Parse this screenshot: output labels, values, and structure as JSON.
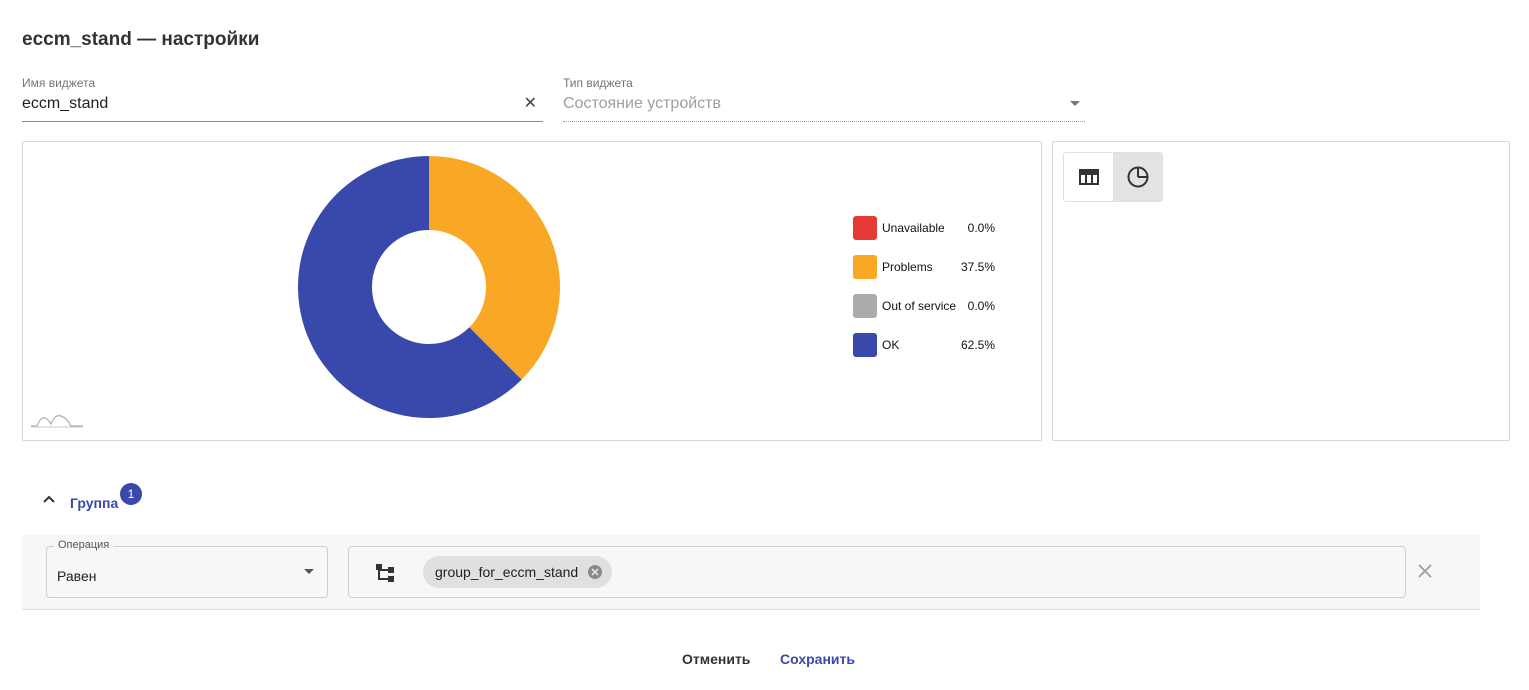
{
  "header": {
    "title": "eccm_stand — настройки"
  },
  "form": {
    "name_label": "Имя виджета",
    "name_value": "eccm_stand",
    "type_label": "Тип виджета",
    "type_value": "Состояние устройств"
  },
  "chart_data": {
    "type": "pie",
    "style": "donut",
    "categories": [
      "Unavailable",
      "Problems",
      "Out of service",
      "OK"
    ],
    "values": [
      0.0,
      37.5,
      0.0,
      62.5
    ],
    "value_labels": [
      "0.0%",
      "37.5%",
      "0.0%",
      "62.5%"
    ],
    "colors": [
      "#e53935",
      "#f9a825",
      "#ababab",
      "#3949ab"
    ],
    "legend_position": "right"
  },
  "view_toggle": {
    "options": [
      "table-icon",
      "pie-chart-icon"
    ],
    "selected": "pie-chart-icon"
  },
  "group": {
    "label": "Группа",
    "count": "1",
    "expanded": true
  },
  "filter": {
    "operation_label": "Операция",
    "operation_value": "Равен",
    "chips": [
      "group_for_eccm_stand"
    ]
  },
  "footer": {
    "cancel_label": "Отменить",
    "save_label": "Сохранить"
  }
}
